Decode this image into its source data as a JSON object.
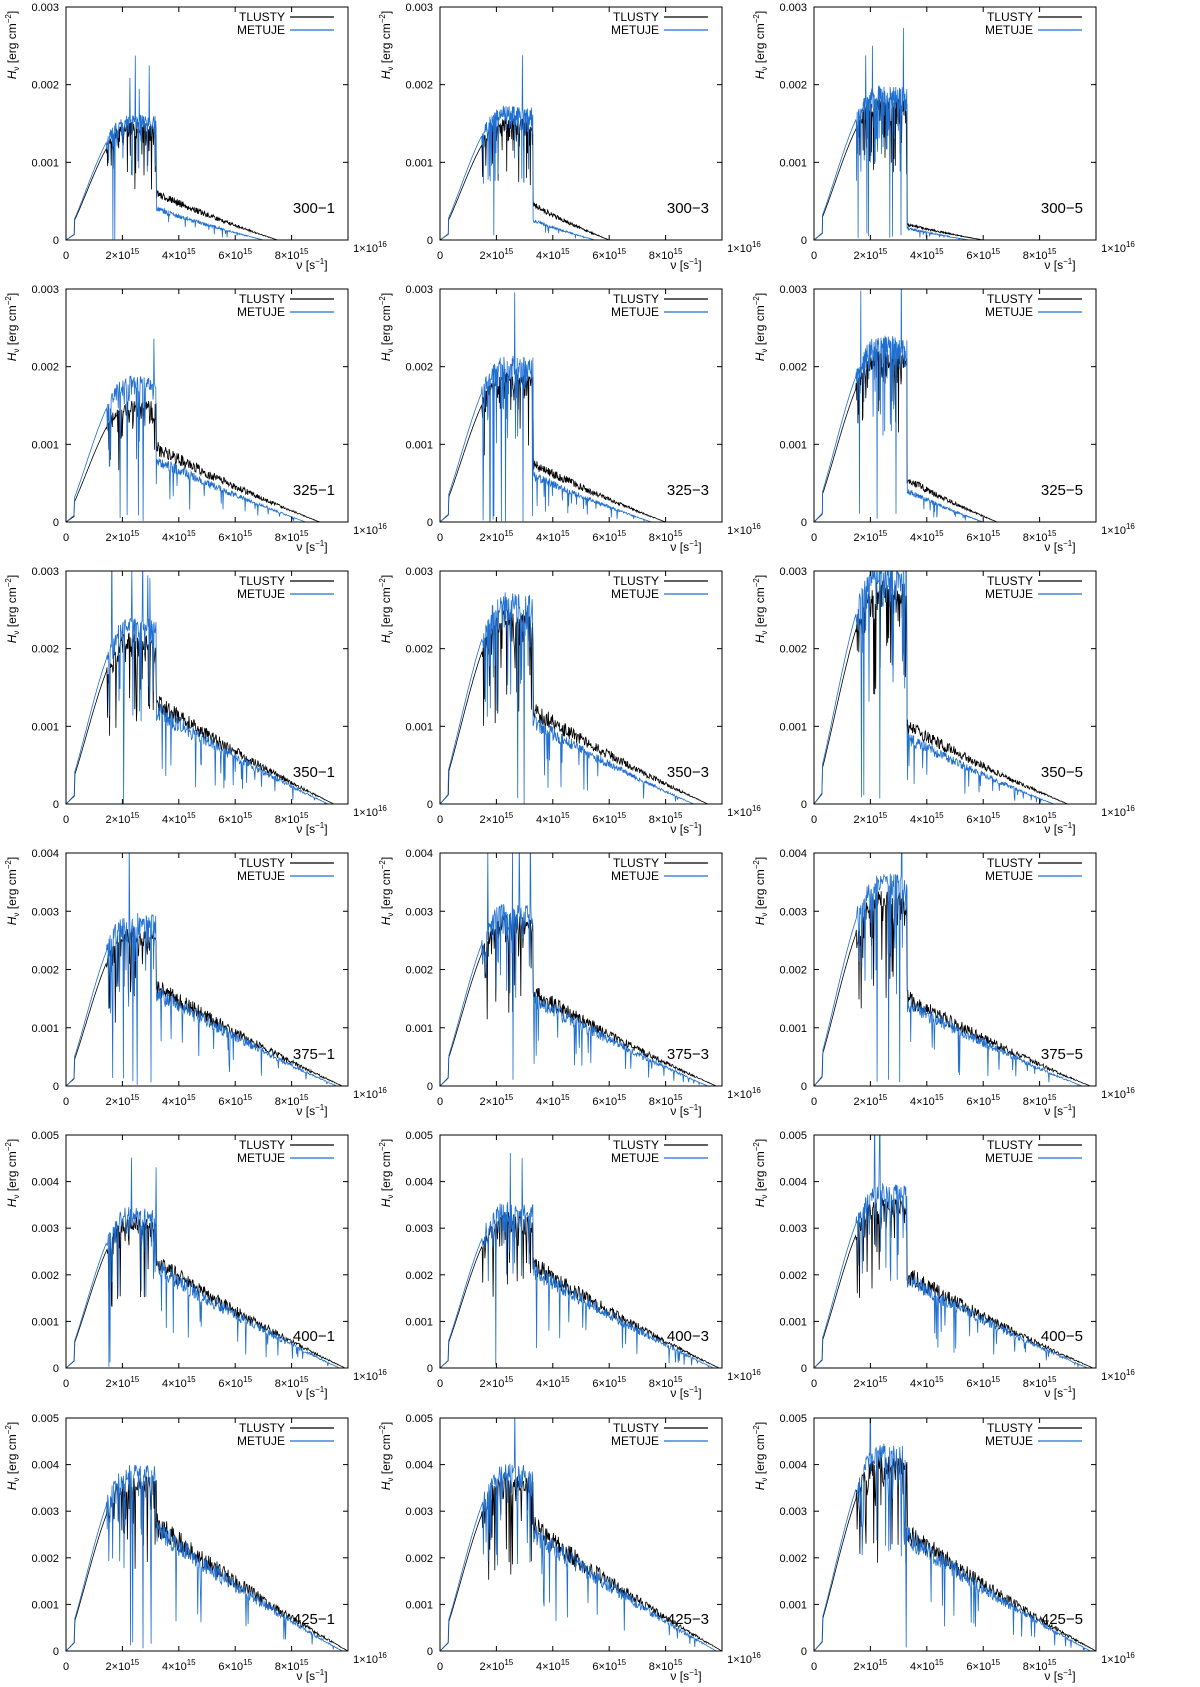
{
  "colors": {
    "tlusty": "#000000",
    "metuje": "#1f6fd0",
    "axis": "#000000",
    "background": "#ffffff"
  },
  "labels": {
    "y_axis_main": "H",
    "y_axis_sub": "ν",
    "y_axis_unit": "[erg cm",
    "y_axis_exp": "−2",
    "y_axis_close": "]",
    "x_axis_main": "ν [s",
    "x_axis_exp": "−1",
    "x_axis_close": "]",
    "x_tick_times": "×10",
    "x_tick_exp": "15",
    "x_last_tick": "1×10",
    "x_last_exp": "16"
  },
  "chart_data": [
    {
      "type": "line",
      "label": "300−1",
      "xlim": [
        0,
        1e+16
      ],
      "ylim": [
        0,
        0.003
      ],
      "xticks": [
        "0",
        "2",
        "4",
        "6",
        "8"
      ],
      "yticks": [
        "0",
        "0.001",
        "0.002",
        "0.003"
      ],
      "series": [
        {
          "name": "TLUSTY",
          "peak": 0.00145,
          "edge": 3200000000000000.0,
          "jump": 0.0006,
          "tail_end": 7500000000000000.0
        },
        {
          "name": "METUJE",
          "peak": 0.00155,
          "edge": 3200000000000000.0,
          "jump": 0.0004,
          "tail_end": 7000000000000000.0
        }
      ]
    },
    {
      "type": "line",
      "label": "300−3",
      "xlim": [
        0,
        1e+16
      ],
      "ylim": [
        0,
        0.003
      ],
      "xticks": [
        "0",
        "2",
        "4",
        "6",
        "8"
      ],
      "yticks": [
        "0",
        "0.001",
        "0.002",
        "0.003"
      ],
      "series": [
        {
          "name": "TLUSTY",
          "peak": 0.0015,
          "edge": 3300000000000000.0,
          "jump": 0.00045,
          "tail_end": 6000000000000000.0
        },
        {
          "name": "METUJE",
          "peak": 0.00165,
          "edge": 3300000000000000.0,
          "jump": 0.00025,
          "tail_end": 5500000000000000.0
        }
      ]
    },
    {
      "type": "line",
      "label": "300−5",
      "xlim": [
        0,
        1e+16
      ],
      "ylim": [
        0,
        0.003
      ],
      "xticks": [
        "0",
        "2",
        "4",
        "6",
        "8"
      ],
      "yticks": [
        "0",
        "0.001",
        "0.002",
        "0.003"
      ],
      "series": [
        {
          "name": "TLUSTY",
          "peak": 0.00175,
          "edge": 3300000000000000.0,
          "jump": 0.0002,
          "tail_end": 6000000000000000.0
        },
        {
          "name": "METUJE",
          "peak": 0.0019,
          "edge": 3300000000000000.0,
          "jump": 0.00015,
          "tail_end": 5500000000000000.0
        }
      ]
    },
    {
      "type": "line",
      "label": "325−1",
      "xlim": [
        0,
        1e+16
      ],
      "ylim": [
        0,
        0.003
      ],
      "xticks": [
        "0",
        "2",
        "4",
        "6",
        "8"
      ],
      "yticks": [
        "0",
        "0.001",
        "0.002",
        "0.003"
      ],
      "series": [
        {
          "name": "TLUSTY",
          "peak": 0.0015,
          "edge": 3200000000000000.0,
          "jump": 0.00095,
          "tail_end": 9000000000000000.0
        },
        {
          "name": "METUJE",
          "peak": 0.0018,
          "edge": 3200000000000000.0,
          "jump": 0.0008,
          "tail_end": 8500000000000000.0
        }
      ]
    },
    {
      "type": "line",
      "label": "325−3",
      "xlim": [
        0,
        1e+16
      ],
      "ylim": [
        0,
        0.003
      ],
      "xticks": [
        "0",
        "2",
        "4",
        "6",
        "8"
      ],
      "yticks": [
        "0",
        "0.001",
        "0.002",
        "0.003"
      ],
      "series": [
        {
          "name": "TLUSTY",
          "peak": 0.00185,
          "edge": 3300000000000000.0,
          "jump": 0.00075,
          "tail_end": 8000000000000000.0
        },
        {
          "name": "METUJE",
          "peak": 0.00205,
          "edge": 3300000000000000.0,
          "jump": 0.0006,
          "tail_end": 7500000000000000.0
        }
      ]
    },
    {
      "type": "line",
      "label": "325−5",
      "xlim": [
        0,
        1e+16
      ],
      "ylim": [
        0,
        0.003
      ],
      "xticks": [
        "0",
        "2",
        "4",
        "6",
        "8"
      ],
      "yticks": [
        "0",
        "0.001",
        "0.002",
        "0.003"
      ],
      "series": [
        {
          "name": "TLUSTY",
          "peak": 0.0021,
          "edge": 3300000000000000.0,
          "jump": 0.00055,
          "tail_end": 6500000000000000.0
        },
        {
          "name": "METUJE",
          "peak": 0.0023,
          "edge": 3300000000000000.0,
          "jump": 0.0004,
          "tail_end": 6000000000000000.0
        }
      ]
    },
    {
      "type": "line",
      "label": "350−1",
      "xlim": [
        0,
        1e+16
      ],
      "ylim": [
        0,
        0.003
      ],
      "xticks": [
        "0",
        "2",
        "4",
        "6",
        "8"
      ],
      "yticks": [
        "0",
        "0.001",
        "0.002",
        "0.003"
      ],
      "series": [
        {
          "name": "TLUSTY",
          "peak": 0.0021,
          "edge": 3200000000000000.0,
          "jump": 0.0013,
          "tail_end": 9500000000000000.0
        },
        {
          "name": "METUJE",
          "peak": 0.0023,
          "edge": 3200000000000000.0,
          "jump": 0.0012,
          "tail_end": 9300000000000000.0
        }
      ]
    },
    {
      "type": "line",
      "label": "350−3",
      "xlim": [
        0,
        1e+16
      ],
      "ylim": [
        0,
        0.003
      ],
      "xticks": [
        "0",
        "2",
        "4",
        "6",
        "8"
      ],
      "yticks": [
        "0",
        "0.001",
        "0.002",
        "0.003"
      ],
      "series": [
        {
          "name": "TLUSTY",
          "peak": 0.0024,
          "edge": 3300000000000000.0,
          "jump": 0.0012,
          "tail_end": 9500000000000000.0
        },
        {
          "name": "METUJE",
          "peak": 0.0026,
          "edge": 3300000000000000.0,
          "jump": 0.00105,
          "tail_end": 9000000000000000.0
        }
      ]
    },
    {
      "type": "line",
      "label": "350−5",
      "xlim": [
        0,
        1e+16
      ],
      "ylim": [
        0,
        0.003
      ],
      "xticks": [
        "0",
        "2",
        "4",
        "6",
        "8"
      ],
      "yticks": [
        "0",
        "0.001",
        "0.002",
        "0.003"
      ],
      "series": [
        {
          "name": "TLUSTY",
          "peak": 0.00275,
          "edge": 3300000000000000.0,
          "jump": 0.001,
          "tail_end": 9000000000000000.0
        },
        {
          "name": "METUJE",
          "peak": 0.003,
          "edge": 3300000000000000.0,
          "jump": 0.00085,
          "tail_end": 8500000000000000.0
        }
      ]
    },
    {
      "type": "line",
      "label": "375−1",
      "xlim": [
        0,
        1e+16
      ],
      "ylim": [
        0,
        0.004
      ],
      "xticks": [
        "0",
        "2",
        "4",
        "6",
        "8"
      ],
      "yticks": [
        "0",
        "0.001",
        "0.002",
        "0.003",
        "0.004"
      ],
      "series": [
        {
          "name": "TLUSTY",
          "peak": 0.0026,
          "edge": 3200000000000000.0,
          "jump": 0.0017,
          "tail_end": 9800000000000000.0
        },
        {
          "name": "METUJE",
          "peak": 0.00285,
          "edge": 3200000000000000.0,
          "jump": 0.0016,
          "tail_end": 9600000000000000.0
        }
      ]
    },
    {
      "type": "line",
      "label": "375−3",
      "xlim": [
        0,
        1e+16
      ],
      "ylim": [
        0,
        0.004
      ],
      "xticks": [
        "0",
        "2",
        "4",
        "6",
        "8"
      ],
      "yticks": [
        "0",
        "0.001",
        "0.002",
        "0.003",
        "0.004"
      ],
      "series": [
        {
          "name": "TLUSTY",
          "peak": 0.0028,
          "edge": 3300000000000000.0,
          "jump": 0.0016,
          "tail_end": 9800000000000000.0
        },
        {
          "name": "METUJE",
          "peak": 0.003,
          "edge": 3300000000000000.0,
          "jump": 0.0015,
          "tail_end": 9500000000000000.0
        }
      ]
    },
    {
      "type": "line",
      "label": "375−5",
      "xlim": [
        0,
        1e+16
      ],
      "ylim": [
        0,
        0.004
      ],
      "xticks": [
        "0",
        "2",
        "4",
        "6",
        "8"
      ],
      "yticks": [
        "0",
        "0.001",
        "0.002",
        "0.003",
        "0.004"
      ],
      "series": [
        {
          "name": "TLUSTY",
          "peak": 0.0032,
          "edge": 3300000000000000.0,
          "jump": 0.0015,
          "tail_end": 9800000000000000.0
        },
        {
          "name": "METUJE",
          "peak": 0.0035,
          "edge": 3300000000000000.0,
          "jump": 0.0014,
          "tail_end": 9500000000000000.0
        }
      ]
    },
    {
      "type": "line",
      "label": "400−1",
      "xlim": [
        0,
        1e+16
      ],
      "ylim": [
        0,
        0.005
      ],
      "xticks": [
        "0",
        "2",
        "4",
        "6",
        "8"
      ],
      "yticks": [
        "0",
        "0.001",
        "0.002",
        "0.003",
        "0.004",
        "0.005"
      ],
      "series": [
        {
          "name": "TLUSTY",
          "peak": 0.0031,
          "edge": 3200000000000000.0,
          "jump": 0.00225,
          "tail_end": 9900000000000000.0
        },
        {
          "name": "METUJE",
          "peak": 0.0033,
          "edge": 3200000000000000.0,
          "jump": 0.00215,
          "tail_end": 9700000000000000.0
        }
      ]
    },
    {
      "type": "line",
      "label": "400−3",
      "xlim": [
        0,
        1e+16
      ],
      "ylim": [
        0,
        0.005
      ],
      "xticks": [
        "0",
        "2",
        "4",
        "6",
        "8"
      ],
      "yticks": [
        "0",
        "0.001",
        "0.002",
        "0.003",
        "0.004",
        "0.005"
      ],
      "series": [
        {
          "name": "TLUSTY",
          "peak": 0.0032,
          "edge": 3300000000000000.0,
          "jump": 0.0022,
          "tail_end": 9900000000000000.0
        },
        {
          "name": "METUJE",
          "peak": 0.0034,
          "edge": 3300000000000000.0,
          "jump": 0.0021,
          "tail_end": 9700000000000000.0
        }
      ]
    },
    {
      "type": "line",
      "label": "400−5",
      "xlim": [
        0,
        1e+16
      ],
      "ylim": [
        0,
        0.005
      ],
      "xticks": [
        "0",
        "2",
        "4",
        "6",
        "8"
      ],
      "yticks": [
        "0",
        "0.001",
        "0.002",
        "0.003",
        "0.004",
        "0.005"
      ],
      "series": [
        {
          "name": "TLUSTY",
          "peak": 0.0035,
          "edge": 3300000000000000.0,
          "jump": 0.002,
          "tail_end": 9900000000000000.0
        },
        {
          "name": "METUJE",
          "peak": 0.0038,
          "edge": 3300000000000000.0,
          "jump": 0.0019,
          "tail_end": 9700000000000000.0
        }
      ]
    },
    {
      "type": "line",
      "label": "425−1",
      "xlim": [
        0,
        1e+16
      ],
      "ylim": [
        0,
        0.005
      ],
      "xticks": [
        "0",
        "2",
        "4",
        "6",
        "8"
      ],
      "yticks": [
        "0",
        "0.001",
        "0.002",
        "0.003",
        "0.004",
        "0.005"
      ],
      "series": [
        {
          "name": "TLUSTY",
          "peak": 0.0036,
          "edge": 3200000000000000.0,
          "jump": 0.0027,
          "tail_end": 1e+16
        },
        {
          "name": "METUJE",
          "peak": 0.00385,
          "edge": 3200000000000000.0,
          "jump": 0.0026,
          "tail_end": 9800000000000000.0
        }
      ]
    },
    {
      "type": "line",
      "label": "425−3",
      "xlim": [
        0,
        1e+16
      ],
      "ylim": [
        0,
        0.005
      ],
      "xticks": [
        "0",
        "2",
        "4",
        "6",
        "8"
      ],
      "yticks": [
        "0",
        "0.001",
        "0.002",
        "0.003",
        "0.004",
        "0.005"
      ],
      "series": [
        {
          "name": "TLUSTY",
          "peak": 0.0036,
          "edge": 3300000000000000.0,
          "jump": 0.00265,
          "tail_end": 1e+16
        },
        {
          "name": "METUJE",
          "peak": 0.00385,
          "edge": 3300000000000000.0,
          "jump": 0.00255,
          "tail_end": 9800000000000000.0
        }
      ]
    },
    {
      "type": "line",
      "label": "425−5",
      "xlim": [
        0,
        1e+16
      ],
      "ylim": [
        0,
        0.005
      ],
      "xticks": [
        "0",
        "2",
        "4",
        "6",
        "8"
      ],
      "yticks": [
        "0",
        "0.001",
        "0.002",
        "0.003",
        "0.004",
        "0.005"
      ],
      "series": [
        {
          "name": "TLUSTY",
          "peak": 0.004,
          "edge": 3300000000000000.0,
          "jump": 0.00255,
          "tail_end": 1e+16
        },
        {
          "name": "METUJE",
          "peak": 0.00425,
          "edge": 3300000000000000.0,
          "jump": 0.00245,
          "tail_end": 9800000000000000.0
        }
      ]
    }
  ]
}
